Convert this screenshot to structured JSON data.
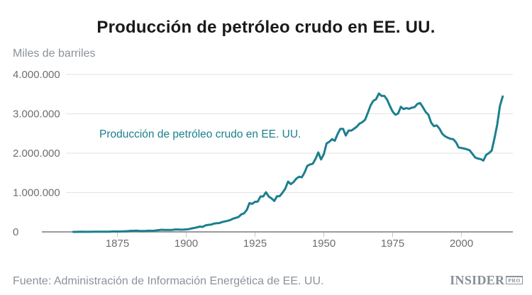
{
  "header": {
    "title": "Producción de petróleo crudo en EE. UU."
  },
  "chart": {
    "y_unit_label": "Miles de barriles",
    "series_label": "Producción de petróleo crudo en EE. UU."
  },
  "footer": {
    "source": "Fuente: Administración de Información Energética de EE. UU.",
    "logo_main": "INSIDER",
    "logo_badge": "PRO"
  },
  "colors": {
    "line": "#1b7f8e",
    "title_text": "#1a1a1a",
    "tick_text": "#6e6e6e",
    "muted_text": "#8b929a",
    "gridline": "#e2e2e2",
    "axis_line": "#9a9a9a",
    "tick_mark": "#c6c6c6",
    "logo_text": "#878e94"
  },
  "chart_data": {
    "type": "line",
    "title": "Producción de petróleo crudo en EE. UU.",
    "ylabel": "Miles de barriles",
    "xlabel": "",
    "unit": "thousand barrels per year",
    "series_name": "Producción de petróleo crudo en EE. UU.",
    "grid": "horizontal-only",
    "legend_position": "inline-annotation",
    "xlim": [
      1847,
      2020
    ],
    "ylim": [
      0,
      4000000
    ],
    "x_ticks": [
      1875,
      1900,
      1925,
      1950,
      1975,
      2000
    ],
    "y_ticks": [
      {
        "value": 0,
        "label": "0"
      },
      {
        "value": 1000000,
        "label": "1.000.000"
      },
      {
        "value": 2000000,
        "label": "2.000.000"
      },
      {
        "value": 3000000,
        "label": "3.000.000"
      },
      {
        "value": 4000000,
        "label": "4.000.000"
      }
    ],
    "x_start": 1859,
    "x_step": 1,
    "x_end": 2015,
    "values": [
      2,
      500,
      2114,
      3057,
      2611,
      2116,
      2498,
      3598,
      3347,
      3646,
      4215,
      5261,
      5205,
      6293,
      9894,
      10927,
      8788,
      9133,
      13350,
      15397,
      19914,
      26286,
      27661,
      30350,
      23450,
      24218,
      21859,
      28065,
      28283,
      27612,
      35164,
      45824,
      54293,
      50515,
      48431,
      49344,
      52892,
      60960,
      60476,
      55364,
      57071,
      63621,
      69389,
      88767,
      100461,
      117081,
      134717,
      126494,
      166095,
      178527,
      183171,
      209557,
      220449,
      222935,
      248446,
      265763,
      281104,
      300767,
      335316,
      355928,
      378367,
      442929,
      472183,
      557531,
      732407,
      713940,
      763743,
      770874,
      901129,
      901474,
      1007323,
      898011,
      851081,
      785159,
      905656,
      908065,
      996596,
      1099687,
      1279160,
      1214355,
      1264962,
      1353214,
      1402228,
      1386645,
      1505613,
      1677904,
      1713655,
      1733939,
      1856987,
      2020185,
      1841940,
      1973574,
      2247711,
      2289836,
      2357082,
      2314988,
      2484428,
      2617283,
      2616901,
      2448987,
      2574590,
      2574933,
      2621758,
      2676189,
      2752723,
      2786822,
      2848514,
      3027763,
      3215742,
      3329042,
      3371751,
      3517450,
      3453914,
      3455368,
      3360903,
      3202585,
      3056779,
      2976180,
      3009265,
      3178216,
      3121310,
      3146365,
      3128624,
      3156715,
      3170999,
      3249696,
      3274553,
      3168252,
      3047378,
      2979123,
      2778773,
      2684687,
      2707039,
      2624632,
      2499033,
      2431476,
      2394268,
      2366017,
      2354831,
      2281919,
      2146732,
      2130707,
      2117511,
      2097124,
      2073453,
      1983302,
      1890106,
      1862259,
      1848450,
      1811817,
      1956596,
      2001806,
      2065667,
      2377720,
      2720782,
      3202516,
      3442200
    ]
  }
}
